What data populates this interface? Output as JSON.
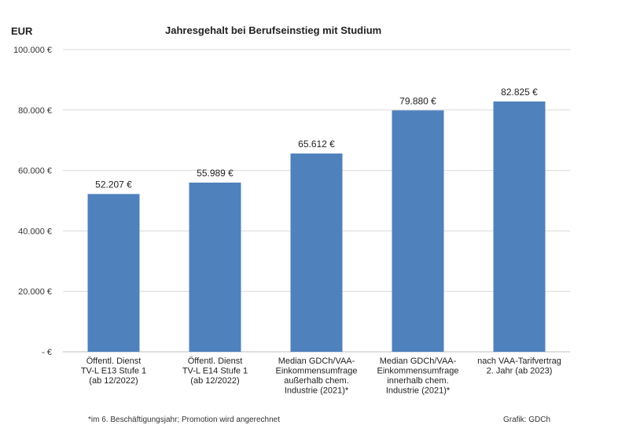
{
  "header": {
    "unit_label": "EUR",
    "title": "Jahresgehalt bei Berufseinstieg mit Studium"
  },
  "footer": {
    "footnote": "*im 6. Beschäftigungsjahr; Promotion wird angerechnet",
    "credit": "Grafik: GDCh"
  },
  "chart_data": {
    "type": "bar",
    "title": "Jahresgehalt bei Berufseinstieg mit Studium",
    "ylabel": "EUR",
    "xlabel": "",
    "ylim": [
      0,
      100000
    ],
    "grid": true,
    "bar_color": "#4F81BD",
    "grid_color": "#d9d9d9",
    "y_ticks": [
      0,
      20000,
      40000,
      60000,
      80000,
      100000
    ],
    "y_tick_labels": [
      "-  €",
      "20.000 €",
      "40.000 €",
      "60.000 €",
      "80.000 €",
      "100.000 €"
    ],
    "categories": [
      [
        "Öffentl. Dienst",
        "TV-L E13 Stufe 1",
        "(ab 12/2022)"
      ],
      [
        "Öffentl. Dienst",
        "TV-L E14 Stufe 1",
        "(ab 12/2022)"
      ],
      [
        "Median GDCh/VAA-",
        "Einkommensumfrage",
        "außerhalb chem.",
        "Industrie (2021)*"
      ],
      [
        "Median  GDCh/VAA-",
        "Einkommensumfrage",
        "innerhalb chem.",
        "Industrie (2021)*"
      ],
      [
        "nach VAA-Tarifvertrag",
        "2. Jahr (ab 2023)"
      ]
    ],
    "values": [
      52207,
      55989,
      65612,
      79880,
      82825
    ],
    "value_labels": [
      "52.207 €",
      "55.989 €",
      "65.612 €",
      "79.880 €",
      "82.825 €"
    ]
  }
}
